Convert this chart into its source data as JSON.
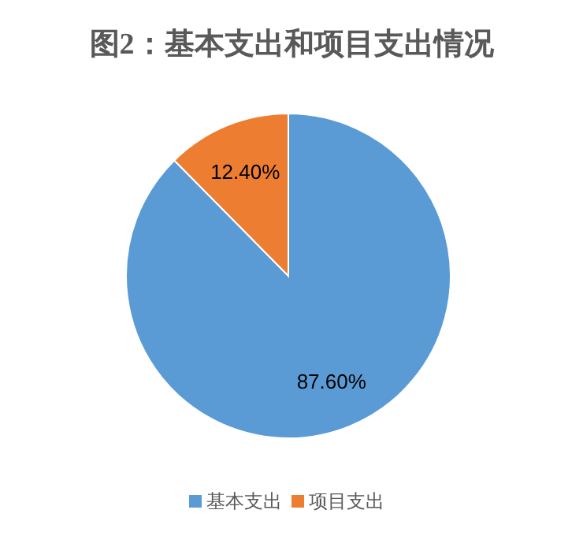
{
  "chart_data": {
    "type": "pie",
    "title": "图2：基本支出和项目支出情况",
    "categories": [
      "基本支出",
      "项目支出"
    ],
    "values": [
      87.6,
      12.4
    ],
    "colors": [
      "#5b9bd5",
      "#ed7d31"
    ],
    "value_labels": [
      "87.60%",
      "12.40%"
    ],
    "legend": "bottom"
  }
}
